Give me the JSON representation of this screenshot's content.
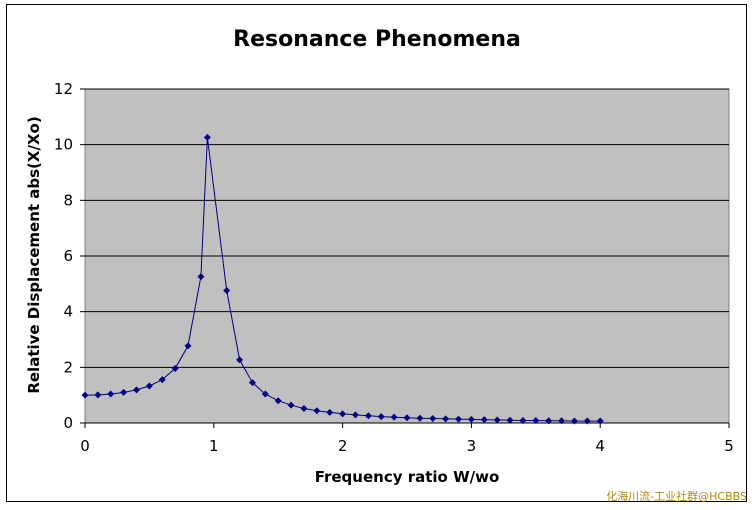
{
  "chart_data": {
    "type": "line",
    "title": "Resonance Phenomena",
    "xlabel": "Frequency ratio W/wo",
    "ylabel": "Relative Displacement abs(X/Xo)",
    "xlim": [
      0,
      5
    ],
    "ylim": [
      0,
      12
    ],
    "xticks": [
      0,
      1,
      2,
      3,
      4,
      5
    ],
    "yticks": [
      0,
      2,
      4,
      6,
      8,
      10,
      12
    ],
    "grid": "horizontal",
    "legend": "none",
    "colors": {
      "plot_bg": "#c0c0c0",
      "line": "#000080",
      "marker": "#000080"
    },
    "series": [
      {
        "x": [
          0,
          0.1,
          0.2,
          0.3,
          0.4,
          0.5,
          0.6,
          0.7,
          0.8,
          0.9,
          0.95,
          1.1,
          1.2,
          1.3,
          1.4,
          1.5,
          1.6,
          1.7,
          1.8,
          1.9,
          2.0,
          2.1,
          2.2,
          2.3,
          2.4,
          2.5,
          2.6,
          2.7,
          2.8,
          2.9,
          3.0,
          3.1,
          3.2,
          3.3,
          3.4,
          3.5,
          3.6,
          3.7,
          3.8,
          3.9,
          4.0
        ],
        "y": [
          1.0,
          1.01,
          1.04,
          1.1,
          1.19,
          1.33,
          1.56,
          1.96,
          2.77,
          5.26,
          10.26,
          4.76,
          2.27,
          1.45,
          1.04,
          0.8,
          0.64,
          0.52,
          0.44,
          0.38,
          0.33,
          0.29,
          0.26,
          0.23,
          0.21,
          0.19,
          0.17,
          0.16,
          0.15,
          0.14,
          0.13,
          0.12,
          0.11,
          0.1,
          0.09,
          0.09,
          0.08,
          0.08,
          0.07,
          0.07,
          0.07
        ]
      }
    ]
  },
  "watermark": "化海川流-工业社群@HCBBS"
}
